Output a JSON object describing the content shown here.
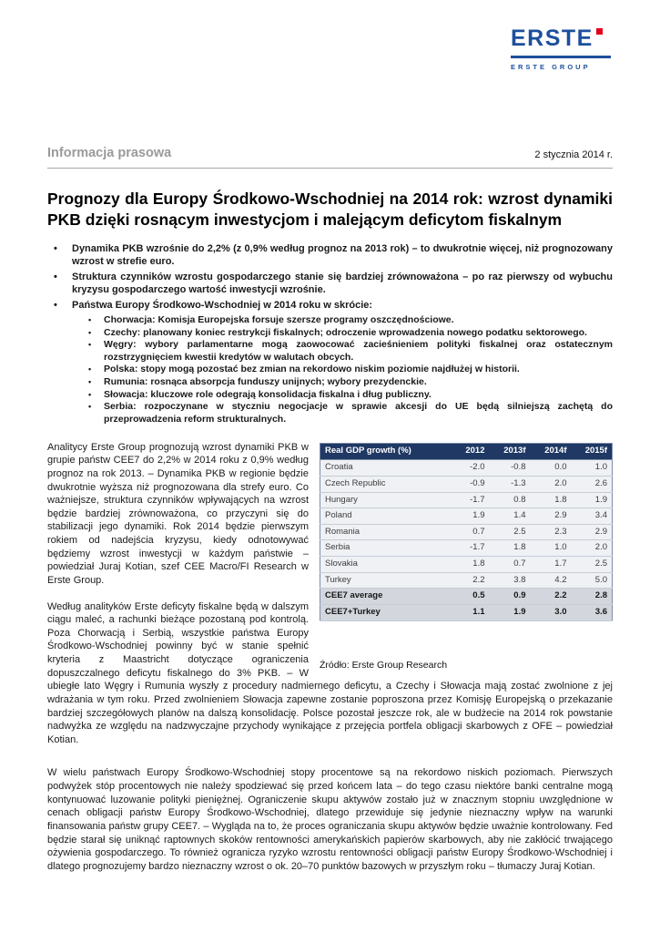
{
  "ui": {
    "bullet": "•"
  },
  "colors": {
    "brand_blue": "#1d4f9c",
    "brand_red": "#e2001a",
    "table_header_bg": "#1f3864",
    "row_bg": "#eff1f4",
    "summary_bg": "#d3d7dd"
  },
  "logo": {
    "brand": "ERSTE",
    "subtitle": "ERSTE GROUP"
  },
  "masthead": {
    "label": "Informacja prasowa",
    "date": "2 stycznia 2014 r."
  },
  "headline": "Prognozy dla Europy Środkowo-Wschodniej na 2014 rok: wzrost dynamiki PKB dzięki rosnącym inwestycjom i malejącym deficytom fiskalnym",
  "bullets": [
    "Dynamika PKB wzrośnie do 2,2% (z 0,9% według prognoz na 2013 rok) – to dwukrotnie więcej, niż prognozowany wzrost w strefie euro.",
    "Struktura czynników wzrostu gospodarczego stanie się bardziej zrównoważona – po raz pierwszy od wybuchu kryzysu gospodarczego wartość inwestycji wzrośnie.",
    "Państwa Europy Środkowo-Wschodniej w 2014 roku w skrócie:"
  ],
  "sub_bullets": [
    "Chorwacja: Komisja Europejska forsuje szersze programy oszczędnościowe.",
    "Czechy: planowany koniec restrykcji fiskalnych; odroczenie wprowadzenia nowego podatku sektorowego.",
    "Węgry: wybory parlamentarne mogą zaowocować zacieśnieniem polityki fiskalnej oraz ostatecznym rozstrzygnięciem kwestii kredytów w walutach obcych.",
    "Polska: stopy mogą pozostać bez zmian na rekordowo niskim poziomie najdłużej w historii.",
    "Rumunia: rosnąca absorpcja funduszy unijnych; wybory prezydenckie.",
    "Słowacja: kluczowe role odegrają konsolidacja fiskalna i dług publiczny.",
    "Serbia: rozpoczynane w styczniu negocjacje w sprawie akcesji do UE będą silniejszą zachętą do przeprowadzenia reform strukturalnych."
  ],
  "paragraphs": [
    "Analitycy Erste Group prognozują wzrost dynamiki PKB w grupie państw CEE7 do 2,2% w 2014 roku z 0,9% według prognoz na rok 2013. – Dynamika PKB w regionie będzie dwukrotnie wyższa niż prognozowana dla strefy euro. Co ważniejsze, struktura czynników wpływających na wzrost będzie bardziej zrównoważona, co przyczyni się do stabilizacji jego dynamiki. Rok 2014 będzie pierwszym rokiem od nadejścia kryzysu, kiedy odnotowywać będziemy wzrost inwestycji w każdym państwie – powiedział Juraj Kotian, szef CEE Macro/FI Research w Erste Group.",
    "Według analityków Erste deficyty fiskalne będą w dalszym ciągu maleć, a rachunki bieżące pozostaną pod kontrolą. Poza Chorwacją i Serbią, wszystkie państwa Europy Środkowo-Wschodniej powinny być w stanie spełnić kryteria z Maastricht dotyczące ograniczenia dopuszczalnego deficytu fiskalnego do 3% PKB. – W ubiegłe lato Węgry i Rumunia wyszły z procedury nadmiernego deficytu, a Czechy i Słowacja mają zostać zwolnione z jej wdrażania w tym roku. Przed zwolnieniem Słowacja zapewne zostanie poproszona przez Komisję Europejską o przekazanie bardziej szczegółowych planów na dalszą konsolidację. Polsce pozostał jeszcze rok, ale w budżecie na 2014 rok powstanie nadwyżka ze względu na nadzwyczajne przychody wynikające z przejęcia portfela obligacji skarbowych z OFE – powiedział Kotian.",
    "W wielu państwach Europy Środkowo-Wschodniej stopy procentowe są na rekordowo niskich poziomach. Pierwszych podwyżek stóp procentowych nie należy spodziewać się przed końcem lata – do tego czasu niektóre banki centralne mogą kontynuować luzowanie polityki pieniężnej. Ograniczenie skupu aktywów zostało już w znacznym stopniu uwzględnione w cenach obligacji państw Europy Środkowo-Wschodniej, dlatego przewiduje się jedynie nieznaczny wpływ na warunki finansowania państw grupy CEE7. – Wygląda na to, że proces ograniczania skupu aktywów będzie uważnie kontrolowany. Fed będzie starał się uniknąć raptownych skoków rentowności amerykańskich papierów skarbowych, aby nie zakłócić trwającego ożywienia gospodarczego. To również ogranicza ryzyko wzrostu rentowności obligacji państw Europy Środkowo-Wschodniej i dlatego prognozujemy bardzo nieznaczny wzrost o ok. 20–70 punktów bazowych w przyszłym roku – tłumaczy Juraj Kotian."
  ],
  "gdp_table": {
    "header": [
      "Real GDP growth (%)",
      "2012",
      "2013f",
      "2014f",
      "2015f"
    ],
    "rows": [
      {
        "name": "Croatia",
        "values": [
          "-2.0",
          "-0.8",
          "0.0",
          "1.0"
        ],
        "bold": false
      },
      {
        "name": "Czech Republic",
        "values": [
          "-0.9",
          "-1.3",
          "2.0",
          "2.6"
        ],
        "bold": false
      },
      {
        "name": "Hungary",
        "values": [
          "-1.7",
          "0.8",
          "1.8",
          "1.9"
        ],
        "bold": false
      },
      {
        "name": "Poland",
        "values": [
          "1.9",
          "1.4",
          "2.9",
          "3.4"
        ],
        "bold": false
      },
      {
        "name": "Romania",
        "values": [
          "0.7",
          "2.5",
          "2.3",
          "2.9"
        ],
        "bold": false
      },
      {
        "name": "Serbia",
        "values": [
          "-1.7",
          "1.8",
          "1.0",
          "2.0"
        ],
        "bold": false
      },
      {
        "name": "Slovakia",
        "values": [
          "1.8",
          "0.7",
          "1.7",
          "2.5"
        ],
        "bold": false
      },
      {
        "name": "Turkey",
        "values": [
          "2.2",
          "3.8",
          "4.2",
          "5.0"
        ],
        "bold": false
      },
      {
        "name": "CEE7 average",
        "values": [
          "0.5",
          "0.9",
          "2.2",
          "2.8"
        ],
        "bold": true
      },
      {
        "name": "CEE7+Turkey",
        "values": [
          "1.1",
          "1.9",
          "3.0",
          "3.6"
        ],
        "bold": true
      }
    ],
    "source": "Źródło: Erste Group Research"
  }
}
